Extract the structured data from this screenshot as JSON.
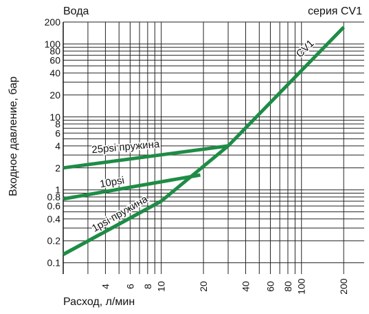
{
  "header": {
    "title_left": "Вода",
    "title_right": "серия CV1"
  },
  "chart_data": {
    "type": "line",
    "xlabel": "Расход, л/мин",
    "ylabel": "Входное давление, бар",
    "x_scale": "log",
    "y_scale": "log",
    "xlim": [
      2,
      280
    ],
    "ylim": [
      0.07,
      200
    ],
    "grid": true,
    "line_color": "#1e8c45",
    "x_gridlines": [
      2,
      3,
      4,
      5,
      6,
      7,
      8,
      9,
      10,
      20,
      30,
      40,
      50,
      60,
      70,
      80,
      90,
      100,
      200
    ],
    "y_gridlines": [
      0.1,
      0.2,
      0.3,
      0.4,
      0.5,
      0.6,
      0.7,
      0.8,
      0.9,
      1,
      2,
      3,
      4,
      5,
      6,
      7,
      8,
      9,
      10,
      20,
      30,
      40,
      50,
      60,
      70,
      80,
      90,
      100,
      200
    ],
    "x_ticks": [
      {
        "value": 4,
        "label": "4"
      },
      {
        "value": 6,
        "label": "6"
      },
      {
        "value": 8,
        "label": "8"
      },
      {
        "value": 10,
        "label": "10"
      },
      {
        "value": 20,
        "label": "20"
      },
      {
        "value": 40,
        "label": "40"
      },
      {
        "value": 60,
        "label": "60"
      },
      {
        "value": 80,
        "label": "80"
      },
      {
        "value": 100,
        "label": "100"
      },
      {
        "value": 200,
        "label": "200"
      }
    ],
    "y_ticks": [
      {
        "value": 0.1,
        "label": "0.1"
      },
      {
        "value": 0.2,
        "label": "0.2"
      },
      {
        "value": 0.4,
        "label": "0.4"
      },
      {
        "value": 0.6,
        "label": "0.6"
      },
      {
        "value": 0.8,
        "label": "0.8"
      },
      {
        "value": 1,
        "label": "1"
      },
      {
        "value": 2,
        "label": "2"
      },
      {
        "value": 4,
        "label": "4"
      },
      {
        "value": 6,
        "label": "6"
      },
      {
        "value": 8,
        "label": "8"
      },
      {
        "value": 10,
        "label": "10"
      },
      {
        "value": 20,
        "label": "20"
      },
      {
        "value": 40,
        "label": "40"
      },
      {
        "value": 60,
        "label": "60"
      },
      {
        "value": 80,
        "label": "80"
      },
      {
        "value": 100,
        "label": "100"
      },
      {
        "value": 200,
        "label": "200"
      }
    ],
    "series": [
      {
        "name": "CV1",
        "points": [
          [
            2,
            0.13
          ],
          [
            10,
            0.7
          ],
          [
            30,
            4
          ],
          [
            200,
            170
          ]
        ],
        "label_at": [
          110,
          80
        ],
        "label_angle": -44
      },
      {
        "name": "25psi пружина",
        "points": [
          [
            2,
            2
          ],
          [
            30,
            4
          ]
        ],
        "label_at": [
          5.6,
          3.5
        ],
        "label_angle": -5
      },
      {
        "name": "10psi",
        "points": [
          [
            2,
            0.75
          ],
          [
            19,
            1.6
          ]
        ],
        "label_at": [
          4.5,
          1.15
        ],
        "label_angle": -10
      },
      {
        "name": "1psi пружина",
        "points": [
          [
            2,
            0.13
          ],
          [
            10,
            0.7
          ]
        ],
        "label_at": [
          5.2,
          0.43
        ],
        "label_angle": -30
      }
    ]
  }
}
